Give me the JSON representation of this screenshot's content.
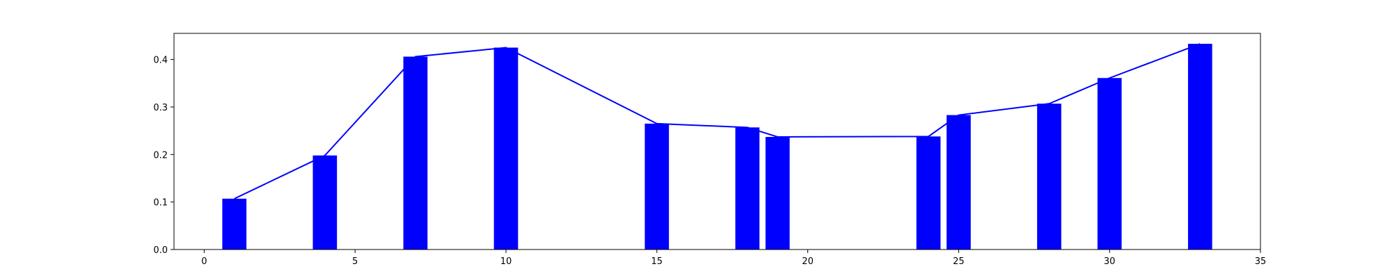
{
  "chart_data": {
    "type": "bar",
    "title": "",
    "xlabel": "",
    "ylabel": "",
    "xlim": [
      -1,
      35
    ],
    "ylim": [
      0,
      0.455
    ],
    "x_ticks": [
      0,
      5,
      10,
      15,
      20,
      25,
      30,
      35
    ],
    "x_tick_labels": [
      "0",
      "5",
      "10",
      "15",
      "20",
      "25",
      "30",
      "35"
    ],
    "y_ticks": [
      0.0,
      0.1,
      0.2,
      0.3,
      0.4
    ],
    "y_tick_labels": [
      "0.0",
      "0.1",
      "0.2",
      "0.3",
      "0.4"
    ],
    "grid": false,
    "bar_width": 0.8,
    "color": "#0000ff",
    "series": [
      {
        "type": "bar",
        "x": [
          1,
          4,
          7,
          10,
          15,
          18,
          19,
          24,
          25,
          28,
          30,
          33
        ],
        "values": [
          0.107,
          0.198,
          0.406,
          0.425,
          0.265,
          0.257,
          0.237,
          0.238,
          0.283,
          0.307,
          0.361,
          0.433
        ]
      },
      {
        "type": "line",
        "x": [
          1,
          4,
          7,
          10,
          15,
          18,
          19,
          24,
          25,
          28,
          30,
          33
        ],
        "values": [
          0.107,
          0.198,
          0.406,
          0.425,
          0.265,
          0.257,
          0.237,
          0.238,
          0.283,
          0.307,
          0.361,
          0.433
        ]
      }
    ]
  }
}
